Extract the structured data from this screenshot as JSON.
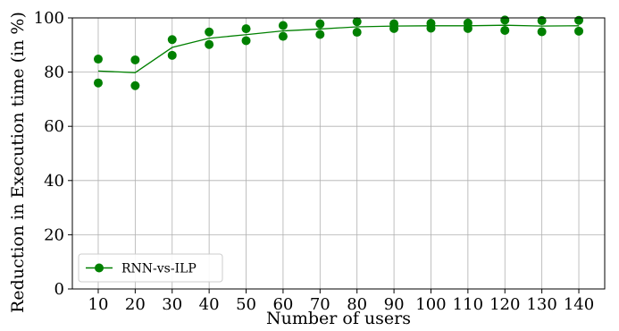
{
  "chart_data": {
    "type": "scatter",
    "title": "",
    "xlabel": "Number of users",
    "ylabel": "Reduction in Execution time (in %)",
    "xlim": [
      3,
      147
    ],
    "ylim": [
      0,
      100
    ],
    "xticks": [
      10,
      20,
      30,
      40,
      50,
      60,
      70,
      80,
      90,
      100,
      110,
      120,
      130,
      140
    ],
    "yticks": [
      0,
      20,
      40,
      60,
      80,
      100
    ],
    "grid": true,
    "legend_position": "bottom-left",
    "series": [
      {
        "name": "RNN-vs-ILP",
        "color": "#008000",
        "marker": "circle",
        "points": [
          {
            "x": 10,
            "y": 84.8
          },
          {
            "x": 10,
            "y": 76.0
          },
          {
            "x": 20,
            "y": 84.5
          },
          {
            "x": 20,
            "y": 75.0
          },
          {
            "x": 30,
            "y": 92.0
          },
          {
            "x": 30,
            "y": 86.2
          },
          {
            "x": 40,
            "y": 94.8
          },
          {
            "x": 40,
            "y": 90.2
          },
          {
            "x": 50,
            "y": 96.0
          },
          {
            "x": 50,
            "y": 91.6
          },
          {
            "x": 60,
            "y": 97.2
          },
          {
            "x": 60,
            "y": 93.2
          },
          {
            "x": 70,
            "y": 97.8
          },
          {
            "x": 70,
            "y": 93.9
          },
          {
            "x": 80,
            "y": 98.6
          },
          {
            "x": 80,
            "y": 94.7
          },
          {
            "x": 90,
            "y": 97.8
          },
          {
            "x": 90,
            "y": 96.1
          },
          {
            "x": 100,
            "y": 98.0
          },
          {
            "x": 100,
            "y": 96.2
          },
          {
            "x": 110,
            "y": 98.1
          },
          {
            "x": 110,
            "y": 96.1
          },
          {
            "x": 120,
            "y": 99.2
          },
          {
            "x": 120,
            "y": 95.4
          },
          {
            "x": 130,
            "y": 99.0
          },
          {
            "x": 130,
            "y": 94.9
          },
          {
            "x": 140,
            "y": 99.1
          },
          {
            "x": 140,
            "y": 95.1
          }
        ],
        "line": [
          {
            "x": 10,
            "y": 80.4
          },
          {
            "x": 20,
            "y": 79.8
          },
          {
            "x": 30,
            "y": 89.1
          },
          {
            "x": 40,
            "y": 92.5
          },
          {
            "x": 50,
            "y": 93.8
          },
          {
            "x": 60,
            "y": 95.2
          },
          {
            "x": 70,
            "y": 95.9
          },
          {
            "x": 80,
            "y": 96.7
          },
          {
            "x": 90,
            "y": 97.0
          },
          {
            "x": 100,
            "y": 97.1
          },
          {
            "x": 110,
            "y": 97.1
          },
          {
            "x": 120,
            "y": 97.3
          },
          {
            "x": 130,
            "y": 97.0
          },
          {
            "x": 140,
            "y": 97.1
          }
        ]
      }
    ]
  }
}
